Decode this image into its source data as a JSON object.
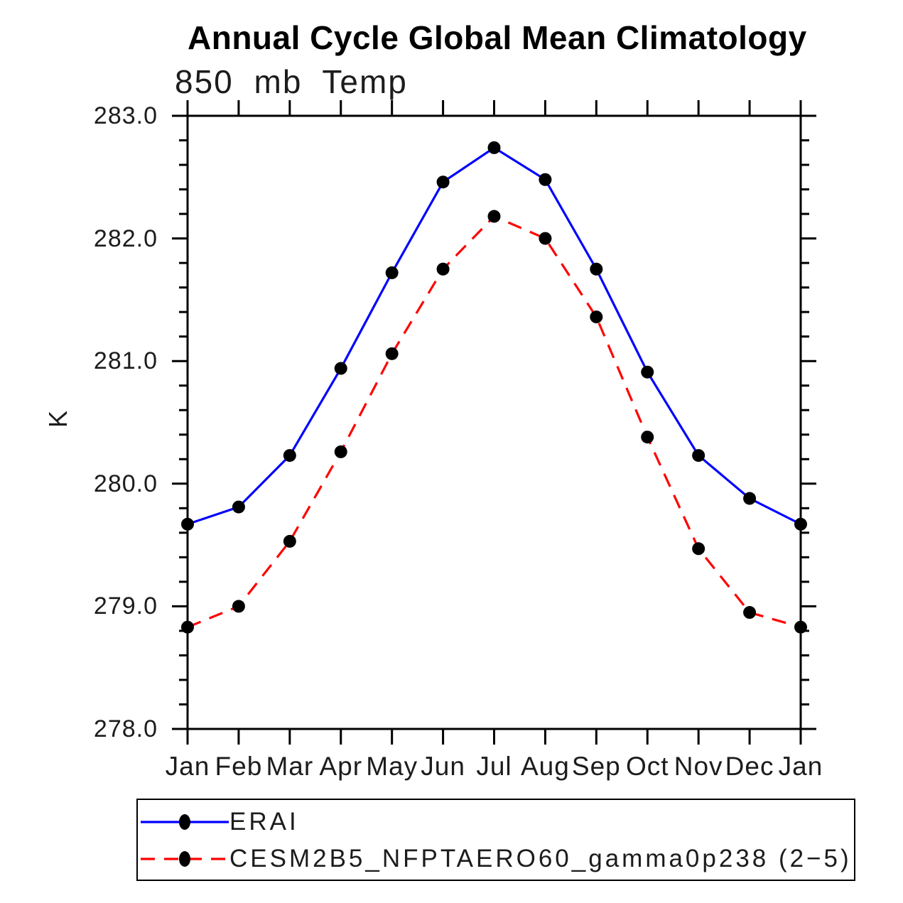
{
  "title": "Annual Cycle Global Mean Climatology",
  "subtitle": "850 mb Temp",
  "y_axis": {
    "label": "K",
    "tick_labels": [
      "283.0",
      "282.0",
      "281.0",
      "280.0",
      "279.0",
      "278.0"
    ]
  },
  "x_axis": {
    "tick_labels": [
      "Jan",
      "Feb",
      "Mar",
      "Apr",
      "May",
      "Jun",
      "Jul",
      "Aug",
      "Sep",
      "Oct",
      "Nov",
      "Dec",
      "Jan"
    ]
  },
  "legend": {
    "entries": [
      {
        "label": "ERAI",
        "color": "#0000ff",
        "line_style": "solid",
        "marker": "black-dot"
      },
      {
        "label": "CESM2B5_NFPTAERO60_gamma0p238 (2−5)",
        "color": "#ff0000",
        "line_style": "dashed",
        "marker": "black-dot"
      }
    ]
  },
  "chart_data": {
    "type": "line",
    "title": "Annual Cycle Global Mean Climatology",
    "subtitle": "850 mb Temp",
    "xlabel": "",
    "ylabel": "K",
    "ylim": [
      278.0,
      283.0
    ],
    "y_major_step": 1.0,
    "y_minor_step": 0.2,
    "grid": false,
    "legend_position": "bottom",
    "categories": [
      "Jan",
      "Feb",
      "Mar",
      "Apr",
      "May",
      "Jun",
      "Jul",
      "Aug",
      "Sep",
      "Oct",
      "Nov",
      "Dec",
      "Jan"
    ],
    "series": [
      {
        "name": "ERAI",
        "color": "#0000ff",
        "line_style": "solid",
        "marker": "filled-circle",
        "marker_color": "#000000",
        "values": [
          279.67,
          279.81,
          280.23,
          280.94,
          281.72,
          282.46,
          282.74,
          282.48,
          281.75,
          280.91,
          280.23,
          279.88,
          279.67
        ]
      },
      {
        "name": "CESM2B5_NFPTAERO60_gamma0p238 (2−5)",
        "color": "#ff0000",
        "line_style": "dashed",
        "marker": "filled-circle",
        "marker_color": "#000000",
        "values": [
          278.83,
          279.0,
          279.53,
          280.26,
          281.06,
          281.75,
          282.18,
          282.0,
          281.36,
          280.38,
          279.47,
          278.95,
          278.83
        ]
      }
    ]
  }
}
